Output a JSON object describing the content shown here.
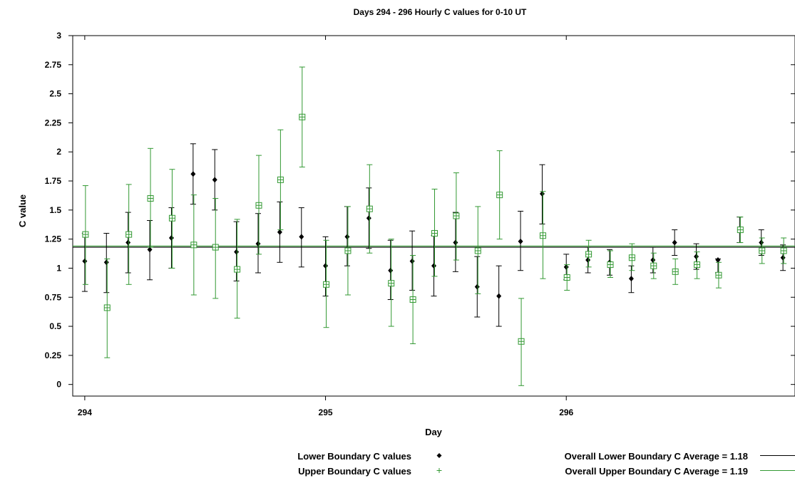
{
  "chart_data": {
    "type": "scatter",
    "title": "Days 294 - 296 Hourly C values for 0-10 UT",
    "xlabel": "Day",
    "ylabel": "C value",
    "xlim": [
      293.95,
      296.95
    ],
    "ylim": [
      -0.1,
      3.0
    ],
    "x_ticks": [
      294,
      295,
      296
    ],
    "x_tick_labels": [
      "294",
      "295",
      "296"
    ],
    "y_ticks": [
      0,
      0.25,
      0.5,
      0.75,
      1,
      1.25,
      1.5,
      1.75,
      2,
      2.25,
      2.5,
      2.75,
      3
    ],
    "y_tick_labels": [
      "0",
      "0.25",
      "0.5",
      "0.75",
      "1",
      "1.25",
      "1.5",
      "1.75",
      "2",
      "2.25",
      "2.5",
      "2.75",
      "3"
    ],
    "grid": false,
    "legend_position": "bottom",
    "colors": {
      "lower": "#000000",
      "upper": "#339933"
    },
    "series": [
      {
        "name": "Lower Boundary C values",
        "marker": "diamond",
        "points": [
          {
            "x": 294.0,
            "y": 1.06,
            "lo": 0.8,
            "hi": 1.3
          },
          {
            "x": 294.09,
            "y": 1.05,
            "lo": 0.79,
            "hi": 1.3
          },
          {
            "x": 294.18,
            "y": 1.22,
            "lo": 0.96,
            "hi": 1.48
          },
          {
            "x": 294.27,
            "y": 1.16,
            "lo": 0.9,
            "hi": 1.41
          },
          {
            "x": 294.36,
            "y": 1.26,
            "lo": 1.0,
            "hi": 1.52
          },
          {
            "x": 294.45,
            "y": 1.81,
            "lo": 1.55,
            "hi": 2.07
          },
          {
            "x": 294.54,
            "y": 1.76,
            "lo": 1.5,
            "hi": 2.02
          },
          {
            "x": 294.63,
            "y": 1.14,
            "lo": 0.89,
            "hi": 1.4
          },
          {
            "x": 294.72,
            "y": 1.21,
            "lo": 0.96,
            "hi": 1.47
          },
          {
            "x": 294.81,
            "y": 1.31,
            "lo": 1.05,
            "hi": 1.57
          },
          {
            "x": 294.9,
            "y": 1.27,
            "lo": 1.01,
            "hi": 1.52
          },
          {
            "x": 295.0,
            "y": 1.02,
            "lo": 0.76,
            "hi": 1.27
          },
          {
            "x": 295.09,
            "y": 1.27,
            "lo": 1.02,
            "hi": 1.53
          },
          {
            "x": 295.18,
            "y": 1.43,
            "lo": 1.17,
            "hi": 1.69
          },
          {
            "x": 295.27,
            "y": 0.98,
            "lo": 0.73,
            "hi": 1.24
          },
          {
            "x": 295.36,
            "y": 1.06,
            "lo": 0.81,
            "hi": 1.32
          },
          {
            "x": 295.45,
            "y": 1.02,
            "lo": 0.76,
            "hi": 1.28
          },
          {
            "x": 295.54,
            "y": 1.22,
            "lo": 0.97,
            "hi": 1.48
          },
          {
            "x": 295.63,
            "y": 0.84,
            "lo": 0.58,
            "hi": 1.1
          },
          {
            "x": 295.72,
            "y": 0.76,
            "lo": 0.5,
            "hi": 1.02
          },
          {
            "x": 295.81,
            "y": 1.23,
            "lo": 0.98,
            "hi": 1.49
          },
          {
            "x": 295.9,
            "y": 1.64,
            "lo": 1.38,
            "hi": 1.89
          },
          {
            "x": 296.0,
            "y": 1.01,
            "lo": 0.9,
            "hi": 1.12
          },
          {
            "x": 296.09,
            "y": 1.07,
            "lo": 0.96,
            "hi": 1.18
          },
          {
            "x": 296.18,
            "y": 1.05,
            "lo": 0.94,
            "hi": 1.16
          },
          {
            "x": 296.27,
            "y": 0.91,
            "lo": 0.79,
            "hi": 1.02
          },
          {
            "x": 296.36,
            "y": 1.07,
            "lo": 0.96,
            "hi": 1.18
          },
          {
            "x": 296.45,
            "y": 1.22,
            "lo": 1.11,
            "hi": 1.33
          },
          {
            "x": 296.54,
            "y": 1.1,
            "lo": 0.99,
            "hi": 1.21
          },
          {
            "x": 296.63,
            "y": 1.07,
            "lo": 0.96,
            "hi": 1.08
          },
          {
            "x": 296.72,
            "y": 1.33,
            "lo": 1.22,
            "hi": 1.44
          },
          {
            "x": 296.81,
            "y": 1.22,
            "lo": 1.11,
            "hi": 1.33
          },
          {
            "x": 296.9,
            "y": 1.09,
            "lo": 0.98,
            "hi": 1.2
          }
        ]
      },
      {
        "name": "Upper Boundary C values",
        "marker": "boxed-plus",
        "points": [
          {
            "x": 294.0,
            "y": 1.29,
            "lo": 0.86,
            "hi": 1.71
          },
          {
            "x": 294.09,
            "y": 0.66,
            "lo": 0.23,
            "hi": 1.08
          },
          {
            "x": 294.18,
            "y": 1.29,
            "lo": 0.86,
            "hi": 1.72
          },
          {
            "x": 294.27,
            "y": 1.6,
            "lo": 1.18,
            "hi": 2.03
          },
          {
            "x": 294.36,
            "y": 1.43,
            "lo": 1.0,
            "hi": 1.85
          },
          {
            "x": 294.45,
            "y": 1.2,
            "lo": 0.77,
            "hi": 1.63
          },
          {
            "x": 294.54,
            "y": 1.18,
            "lo": 0.74,
            "hi": 1.6
          },
          {
            "x": 294.63,
            "y": 0.99,
            "lo": 0.57,
            "hi": 1.42
          },
          {
            "x": 294.72,
            "y": 1.54,
            "lo": 1.12,
            "hi": 1.97
          },
          {
            "x": 294.81,
            "y": 1.76,
            "lo": 1.33,
            "hi": 2.19
          },
          {
            "x": 294.9,
            "y": 2.3,
            "lo": 1.87,
            "hi": 2.73
          },
          {
            "x": 295.0,
            "y": 0.86,
            "lo": 0.49,
            "hi": 1.24
          },
          {
            "x": 295.09,
            "y": 1.15,
            "lo": 0.77,
            "hi": 1.53
          },
          {
            "x": 295.18,
            "y": 1.51,
            "lo": 1.13,
            "hi": 1.89
          },
          {
            "x": 295.27,
            "y": 0.87,
            "lo": 0.5,
            "hi": 1.25
          },
          {
            "x": 295.36,
            "y": 0.73,
            "lo": 0.35,
            "hi": 1.11
          },
          {
            "x": 295.45,
            "y": 1.3,
            "lo": 0.93,
            "hi": 1.68
          },
          {
            "x": 295.54,
            "y": 1.45,
            "lo": 1.07,
            "hi": 1.82
          },
          {
            "x": 295.63,
            "y": 1.15,
            "lo": 0.78,
            "hi": 1.53
          },
          {
            "x": 295.72,
            "y": 1.63,
            "lo": 1.25,
            "hi": 2.01
          },
          {
            "x": 295.81,
            "y": 0.37,
            "lo": -0.01,
            "hi": 0.74
          },
          {
            "x": 295.9,
            "y": 1.28,
            "lo": 0.91,
            "hi": 1.66
          },
          {
            "x": 296.0,
            "y": 0.92,
            "lo": 0.81,
            "hi": 1.03
          },
          {
            "x": 296.09,
            "y": 1.12,
            "lo": 1.01,
            "hi": 1.24
          },
          {
            "x": 296.18,
            "y": 1.03,
            "lo": 0.92,
            "hi": 1.15
          },
          {
            "x": 296.27,
            "y": 1.09,
            "lo": 0.98,
            "hi": 1.21
          },
          {
            "x": 296.36,
            "y": 1.02,
            "lo": 0.91,
            "hi": 1.13
          },
          {
            "x": 296.45,
            "y": 0.97,
            "lo": 0.86,
            "hi": 1.08
          },
          {
            "x": 296.54,
            "y": 1.03,
            "lo": 0.91,
            "hi": 1.14
          },
          {
            "x": 296.63,
            "y": 0.94,
            "lo": 0.83,
            "hi": 1.05
          },
          {
            "x": 296.72,
            "y": 1.33,
            "lo": 1.22,
            "hi": 1.44
          },
          {
            "x": 296.81,
            "y": 1.15,
            "lo": 1.04,
            "hi": 1.26
          },
          {
            "x": 296.9,
            "y": 1.15,
            "lo": 1.04,
            "hi": 1.26
          }
        ]
      }
    ],
    "averages": [
      {
        "name": "Overall Lower Boundary C Average = 1.18",
        "value": 1.18,
        "color": "#000000"
      },
      {
        "name": "Overall Upper Boundary C Average = 1.19",
        "value": 1.19,
        "color": "#339933"
      }
    ],
    "legend": {
      "lower_marker_label": "Lower Boundary C values",
      "upper_marker_label": "Upper Boundary C values",
      "lower_avg_label": "Overall Lower Boundary C Average = 1.18",
      "upper_avg_label": "Overall Upper Boundary C Average = 1.19"
    }
  }
}
